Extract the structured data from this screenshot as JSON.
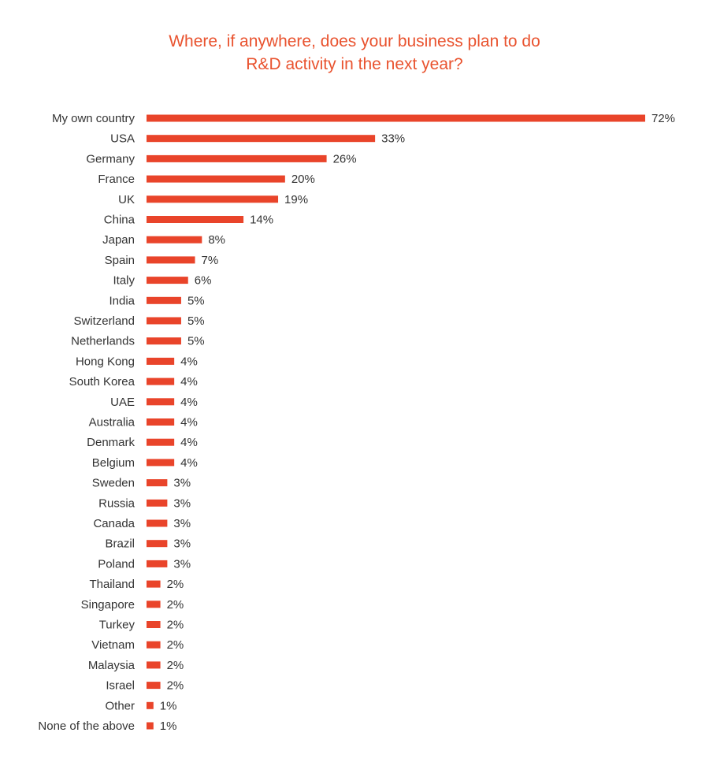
{
  "chart_data": {
    "type": "bar",
    "orientation": "horizontal",
    "title_lines": [
      "Where, if anywhere, does your business plan to do",
      "R&D activity in the next year?"
    ],
    "categories": [
      "My own country",
      "USA",
      "Germany",
      "France",
      "UK",
      "China",
      "Japan",
      "Spain",
      "Italy",
      "India",
      "Switzerland",
      "Netherlands",
      "Hong Kong",
      "South Korea",
      "UAE",
      "Australia",
      "Denmark",
      "Belgium",
      "Sweden",
      "Russia",
      "Canada",
      "Brazil",
      "Poland",
      "Thailand",
      "Singapore",
      "Turkey",
      "Vietnam",
      "Malaysia",
      "Israel",
      "Other",
      "None of the above"
    ],
    "values": [
      72,
      33,
      26,
      20,
      19,
      14,
      8,
      7,
      6,
      5,
      5,
      5,
      4,
      4,
      4,
      4,
      4,
      4,
      3,
      3,
      3,
      3,
      3,
      2,
      2,
      2,
      2,
      2,
      2,
      1,
      1
    ],
    "value_labels": [
      "72%",
      "33%",
      "26%",
      "20%",
      "19%",
      "14%",
      "8%",
      "7%",
      "6%",
      "5%",
      "5%",
      "5%",
      "4%",
      "4%",
      "4%",
      "4%",
      "4%",
      "4%",
      "3%",
      "3%",
      "3%",
      "3%",
      "3%",
      "2%",
      "2%",
      "2%",
      "2%",
      "2%",
      "2%",
      "1%",
      "1%"
    ],
    "unit": "%",
    "xlim": [
      0,
      72
    ],
    "grid": false,
    "legend": "none",
    "bar_color": "#e9442a",
    "title_color": "#e9532f",
    "text_color": "#333333"
  }
}
